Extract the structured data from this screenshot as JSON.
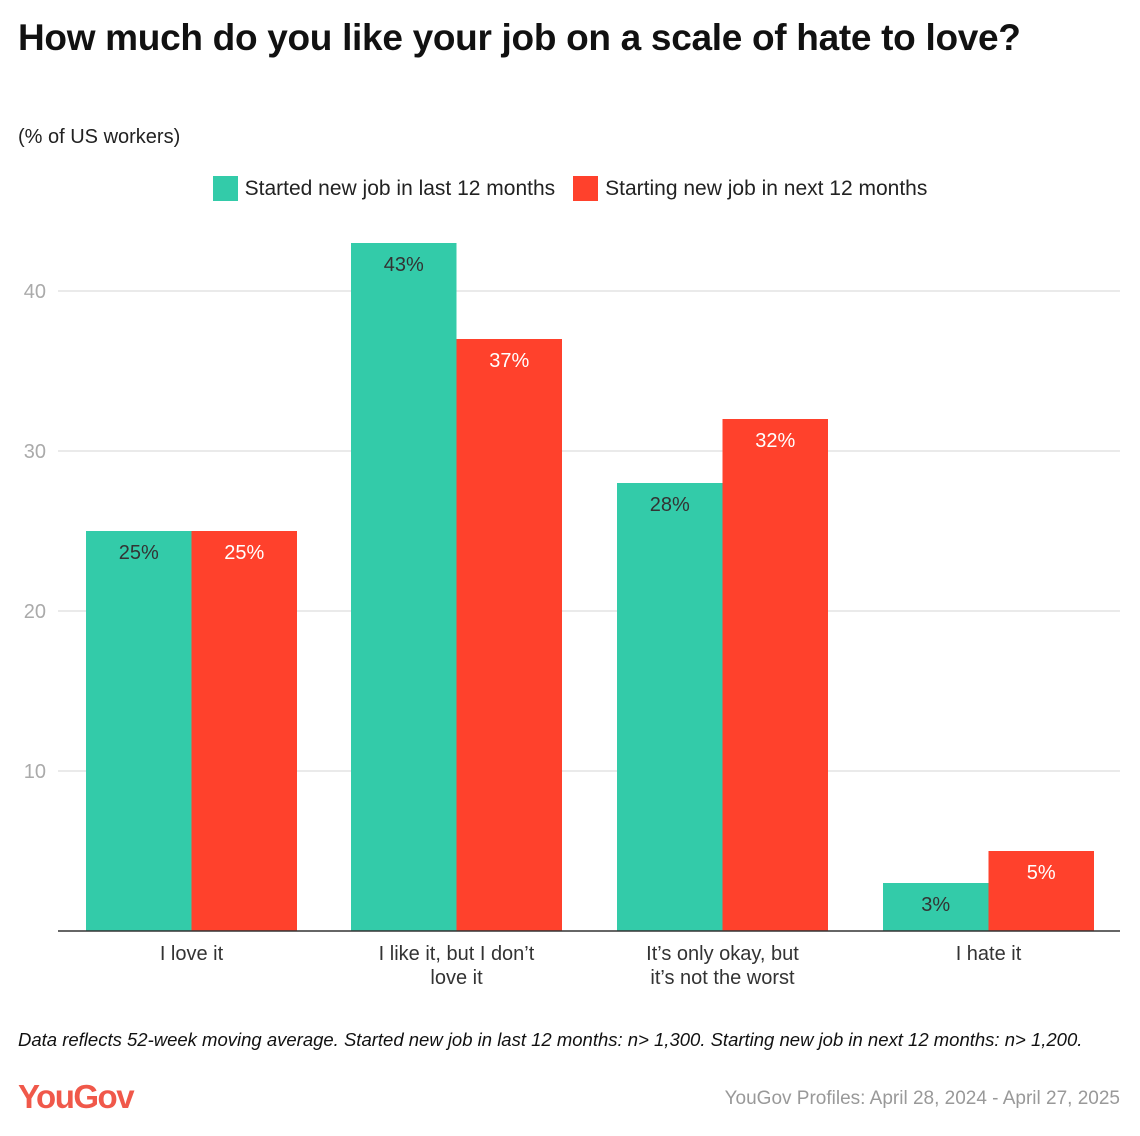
{
  "chart_data": {
    "type": "bar",
    "title": "How much do you like your job on a scale of hate to love?",
    "subtitle": "(% of US workers)",
    "categories": [
      "I love it",
      "I like it, but I don’t love it",
      "It’s only okay, but it’s not the worst",
      "I hate it"
    ],
    "series": [
      {
        "name": "Started new job in last 12 months",
        "values": [
          25,
          43,
          28,
          3
        ],
        "labels": [
          "25%",
          "43%",
          "28%",
          "3%"
        ],
        "color": "#33cba9"
      },
      {
        "name": "Starting new job in next 12 months",
        "values": [
          25,
          37,
          32,
          5
        ],
        "labels": [
          "25%",
          "37%",
          "32%",
          "5%"
        ],
        "color": "#ff412c"
      }
    ],
    "yticks": [
      10,
      20,
      30,
      40
    ],
    "ylim": [
      0,
      46
    ],
    "grid": true,
    "legend_position": "top"
  },
  "footer": {
    "note": "Data reflects 52-week moving average. Started new job in last 12 months: n> 1,300. Starting new job in next 12 months: n> 1,200.",
    "logo": "YouGov",
    "source": "YouGov Profiles: April 28, 2024 - April 27, 2025"
  }
}
